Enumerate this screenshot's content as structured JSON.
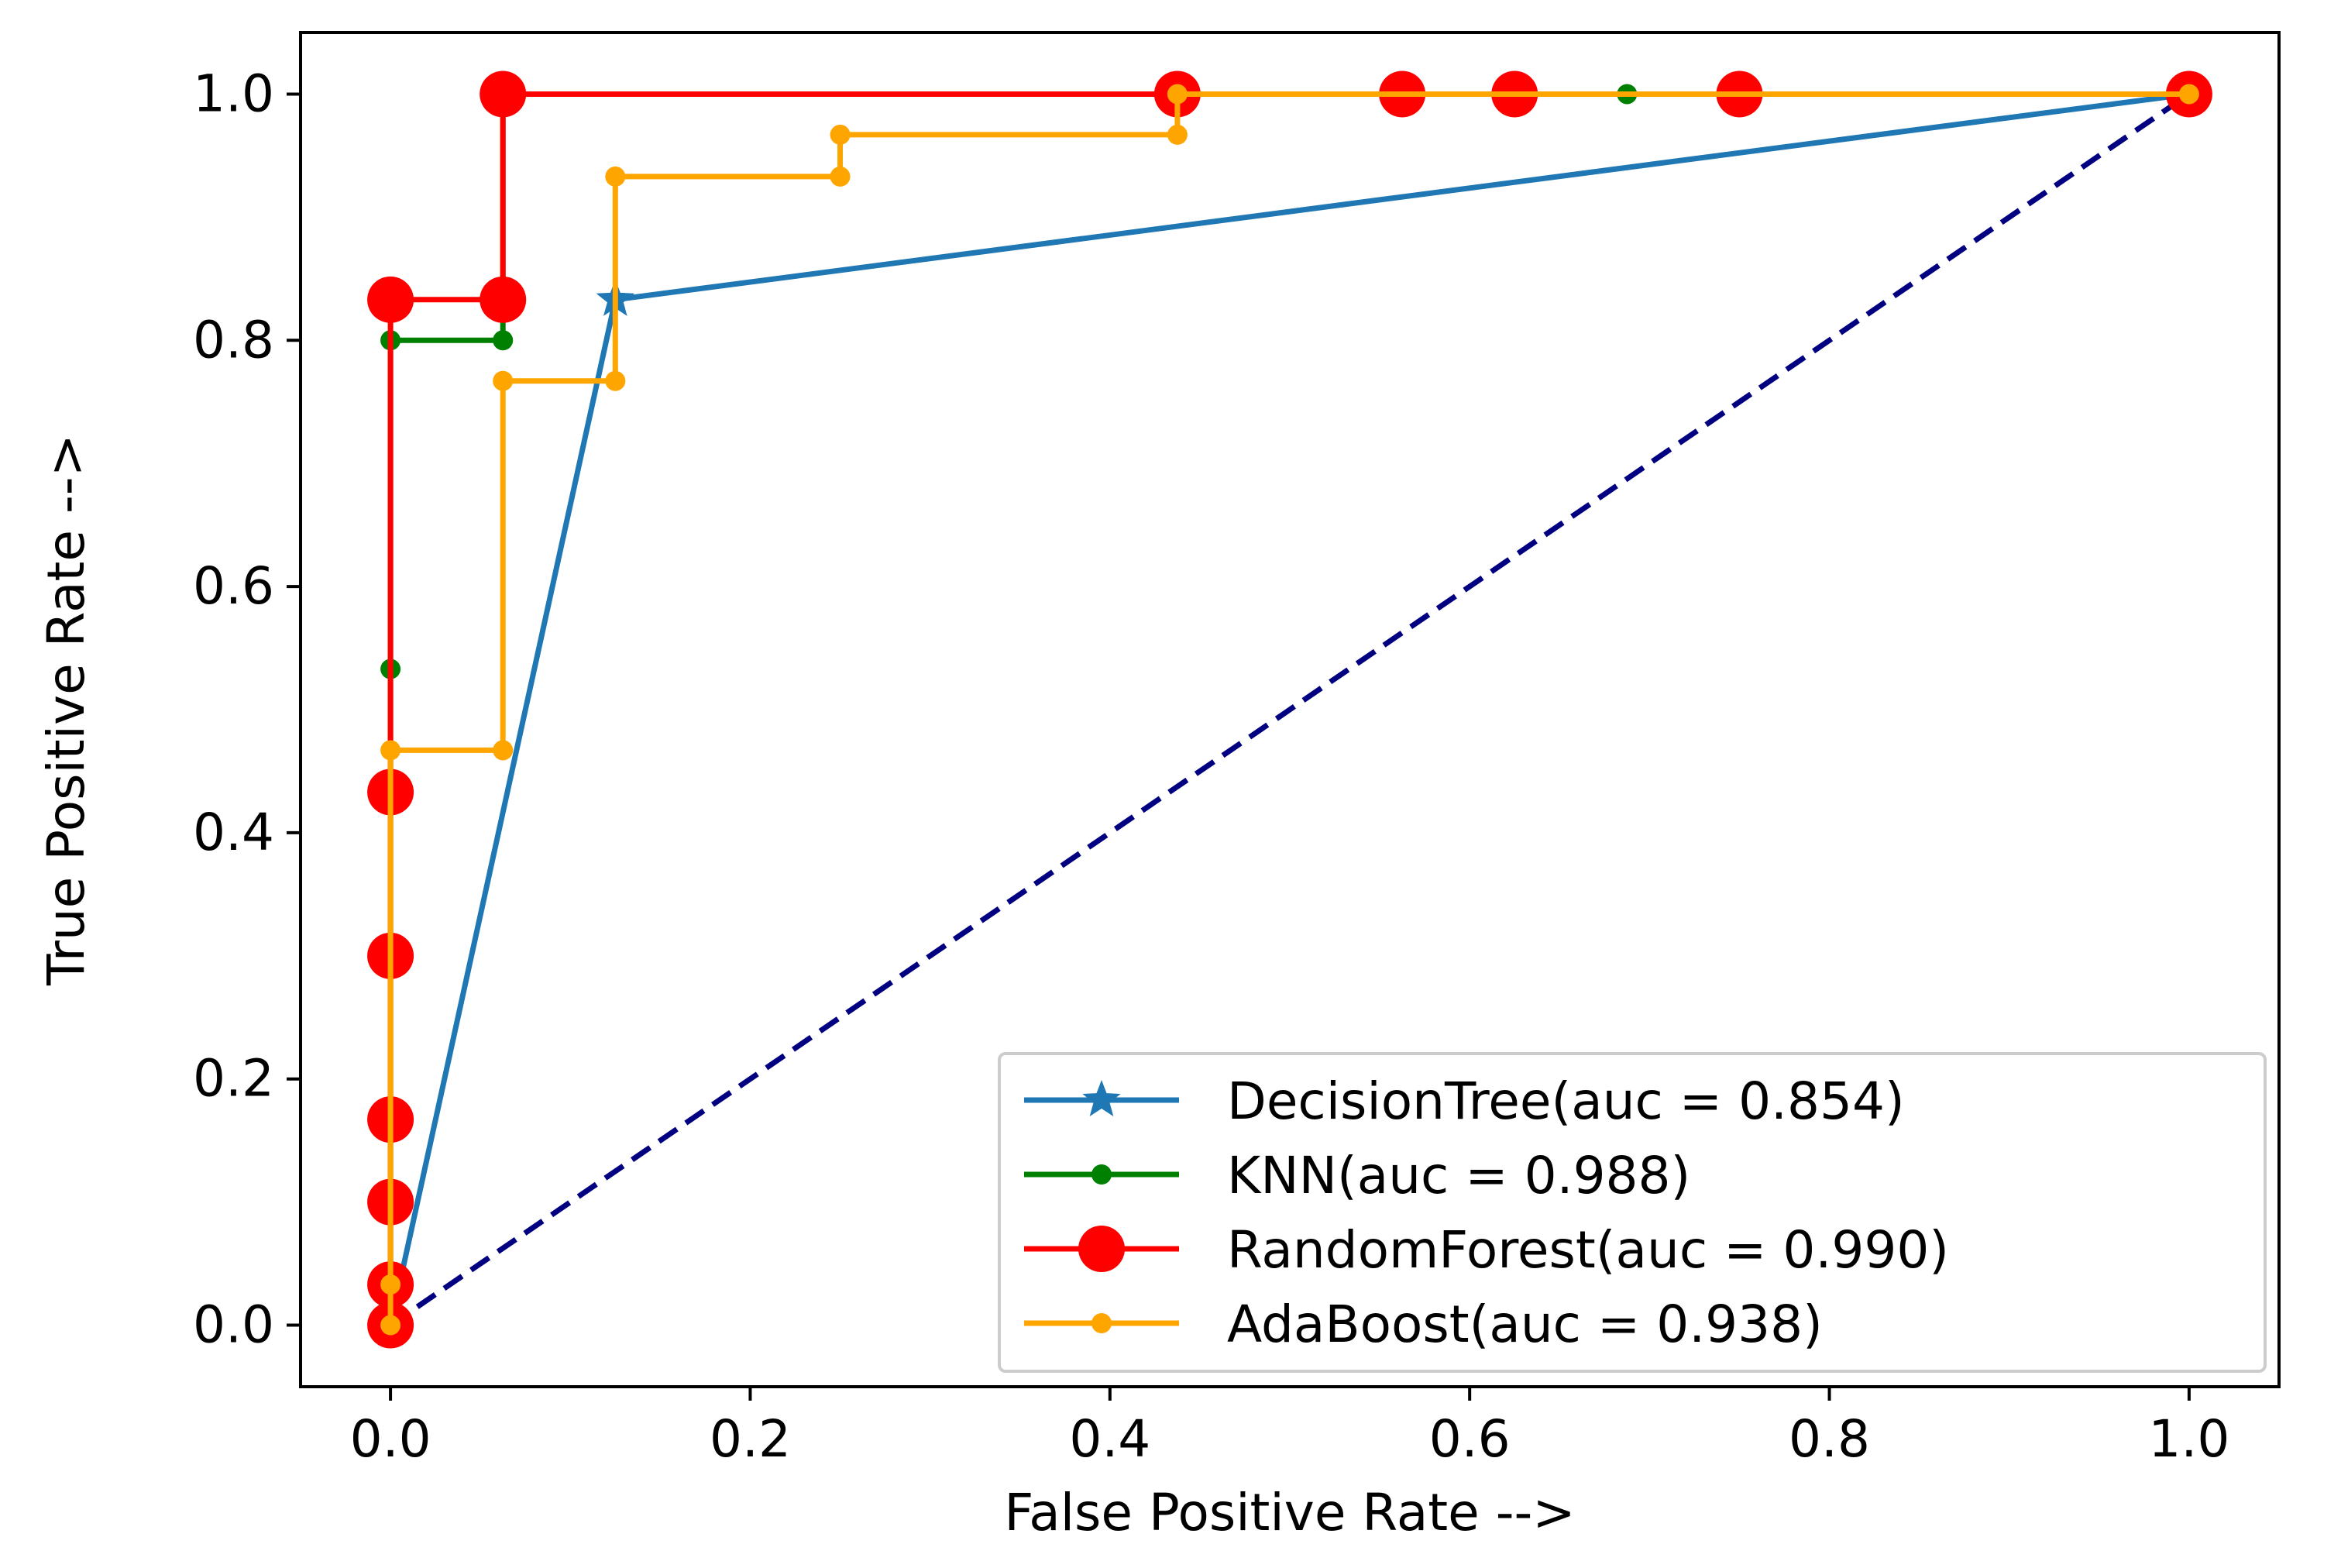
{
  "chart_data": {
    "type": "line",
    "title": "",
    "xlabel": "False Positive Rate -->",
    "ylabel": "True Positive Rate -->",
    "xlim": [
      -0.05,
      1.05
    ],
    "ylim": [
      -0.05,
      1.05
    ],
    "xticks": [
      0.0,
      0.2,
      0.4,
      0.6,
      0.8,
      1.0
    ],
    "yticks": [
      0.0,
      0.2,
      0.4,
      0.6,
      0.8,
      1.0
    ],
    "xtick_labels": [
      "0.0",
      "0.2",
      "0.4",
      "0.6",
      "0.8",
      "1.0"
    ],
    "ytick_labels": [
      "0.0",
      "0.2",
      "0.4",
      "0.6",
      "0.8",
      "1.0"
    ],
    "grid": false,
    "legend_position": "lower-right",
    "series": [
      {
        "name": "DecisionTree(auc = 0.854)",
        "color": "#1f77b4",
        "marker": "star",
        "x": [
          0.0,
          0.125,
          1.0
        ],
        "y": [
          0.0,
          0.833,
          1.0
        ]
      },
      {
        "name": "KNN(auc = 0.988)",
        "color": "#008000",
        "marker": "dot",
        "x": [
          0.0,
          0.0,
          0.0,
          0.0625,
          0.0625,
          0.4375,
          0.6875,
          1.0
        ],
        "y": [
          0.0,
          0.533,
          0.8,
          0.8,
          1.0,
          1.0,
          1.0,
          1.0
        ]
      },
      {
        "name": "RandomForest(auc = 0.990)",
        "color": "#ff0000",
        "marker": "big-dot",
        "x": [
          0.0,
          0.0,
          0.0,
          0.0,
          0.0,
          0.0,
          0.0,
          0.0625,
          0.0625,
          0.4375,
          0.5625,
          0.625,
          0.75,
          1.0
        ],
        "y": [
          0.0,
          0.033,
          0.1,
          0.167,
          0.3,
          0.433,
          0.833,
          0.833,
          1.0,
          1.0,
          1.0,
          1.0,
          1.0,
          1.0
        ]
      },
      {
        "name": "AdaBoost(auc = 0.938)",
        "color": "#ffa500",
        "marker": "dot",
        "x": [
          0.0,
          0.0,
          0.0,
          0.0625,
          0.0625,
          0.125,
          0.125,
          0.25,
          0.25,
          0.4375,
          0.4375,
          1.0
        ],
        "y": [
          0.0,
          0.033,
          0.467,
          0.467,
          0.767,
          0.767,
          0.933,
          0.933,
          0.967,
          0.967,
          1.0,
          1.0
        ]
      }
    ],
    "reference_line": {
      "name": "chance",
      "color": "#000080",
      "style": "dashed",
      "x": [
        0.0,
        1.0
      ],
      "y": [
        0.0,
        1.0
      ]
    }
  }
}
